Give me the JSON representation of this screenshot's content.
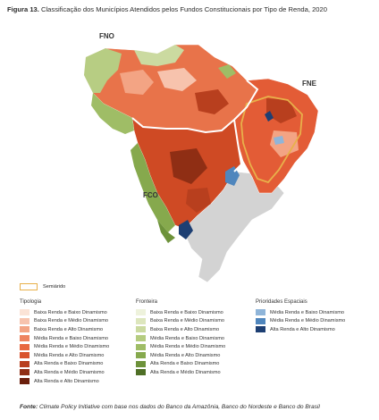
{
  "figure": {
    "number": "Figura 13.",
    "title": "Classificação dos Municípios Atendidos pelos Fundos Constitucionais por Tipo de Renda, 2020"
  },
  "regions": {
    "fno": "FNO",
    "fne": "FNE",
    "fco": "FCO"
  },
  "semiarido_label": "Semiárido",
  "legend": {
    "tipologia": {
      "header": "Tipologia",
      "items": [
        {
          "label": "Baixa Renda e Baixo Dinamismo",
          "color": "#fbe3d6"
        },
        {
          "label": "Baixa Renda e Médio Dinamismo",
          "color": "#f7c3ad"
        },
        {
          "label": "Baixa Renda e Alto Dinamismo",
          "color": "#f3a484"
        },
        {
          "label": "Média Renda e Baixo Dinamismo",
          "color": "#ee8460"
        },
        {
          "label": "Média Renda e Médio Dinamismo",
          "color": "#e86840"
        },
        {
          "label": "Média Renda e Alto Dinamismo",
          "color": "#d9522b"
        },
        {
          "label": "Alta Renda e Baixo Dinamismo",
          "color": "#b83f1e"
        },
        {
          "label": "Alta Renda e Médio Dinamismo",
          "color": "#8f2e14"
        },
        {
          "label": "Alta Renda e Alto Dinamismo",
          "color": "#6b1f0c"
        }
      ]
    },
    "fronteira": {
      "header": "Fronteira",
      "items": [
        {
          "label": "Baixa Renda e Baixo Dinamismo",
          "color": "#eef2dc"
        },
        {
          "label": "Baixa Renda e Médio Dinamismo",
          "color": "#dde6bd"
        },
        {
          "label": "Baixa Renda e Alto Dinamismo",
          "color": "#cbdaa0"
        },
        {
          "label": "Média Renda e Baixo Dinamismo",
          "color": "#b5cc80"
        },
        {
          "label": "Média Renda e Médio Dinamismo",
          "color": "#9fbd66"
        },
        {
          "label": "Média Renda e Alto Dinamismo",
          "color": "#86a94d"
        },
        {
          "label": "Alta Renda e Baixo Dinamismo",
          "color": "#6d923a"
        },
        {
          "label": "Alta Renda e Médio Dinamismo",
          "color": "#4f6f26"
        }
      ]
    },
    "prioridades": {
      "header": "Prioridades Espaciais",
      "items": [
        {
          "label": "Média Renda e Baixo Dinamismo",
          "color": "#8fb5d9"
        },
        {
          "label": "Média Renda e Médio Dinamismo",
          "color": "#4f86bd"
        },
        {
          "label": "Alta Renda e Alto Dinamismo",
          "color": "#1d3f73"
        }
      ]
    }
  },
  "source": {
    "prefix": "Fonte:",
    "text": "Climate Policy Initiative com base nos dados do Banco da Amazônia, Banco do Nordeste e Banco do Brasil"
  }
}
